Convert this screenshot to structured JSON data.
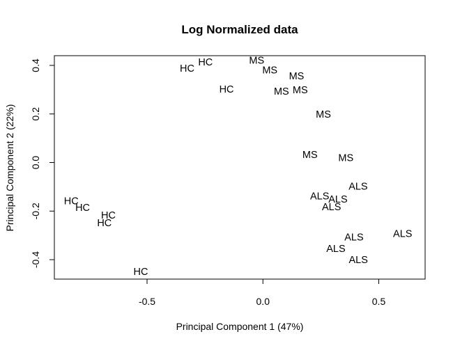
{
  "chart_data": {
    "type": "scatter",
    "title": "Log Normalized data",
    "xlabel": "Principal Component 1 (47%)",
    "ylabel": "Principal Component 2 (22%)",
    "xlim": [
      -0.9,
      0.7
    ],
    "ylim": [
      -0.48,
      0.44
    ],
    "xticks": [
      -0.5,
      0.0,
      0.5
    ],
    "xtick_labels": [
      "-0.5",
      "0.0",
      "0.5"
    ],
    "yticks": [
      -0.4,
      -0.2,
      0.0,
      0.2,
      0.4
    ],
    "ytick_labels": [
      "-0.4",
      "-0.2",
      "0.0",
      "0.2",
      "0.4"
    ],
    "grid": false,
    "points": [
      {
        "label": "HC",
        "x": -0.248,
        "y": 0.411
      },
      {
        "label": "HC",
        "x": -0.327,
        "y": 0.385
      },
      {
        "label": "HC",
        "x": -0.157,
        "y": 0.299
      },
      {
        "label": "HC",
        "x": -0.827,
        "y": -0.16
      },
      {
        "label": "HC",
        "x": -0.778,
        "y": -0.187
      },
      {
        "label": "HC",
        "x": -0.667,
        "y": -0.219
      },
      {
        "label": "HC",
        "x": -0.684,
        "y": -0.25
      },
      {
        "label": "HC",
        "x": -0.527,
        "y": -0.451
      },
      {
        "label": "MS",
        "x": -0.027,
        "y": 0.418
      },
      {
        "label": "MS",
        "x": 0.03,
        "y": 0.379
      },
      {
        "label": "MS",
        "x": 0.145,
        "y": 0.354
      },
      {
        "label": "MS",
        "x": 0.08,
        "y": 0.291
      },
      {
        "label": "MS",
        "x": 0.161,
        "y": 0.296
      },
      {
        "label": "MS",
        "x": 0.261,
        "y": 0.197
      },
      {
        "label": "MS",
        "x": 0.203,
        "y": 0.03
      },
      {
        "label": "MS",
        "x": 0.358,
        "y": 0.017
      },
      {
        "label": "ALS",
        "x": 0.411,
        "y": -0.1
      },
      {
        "label": "ALS",
        "x": 0.245,
        "y": -0.14
      },
      {
        "label": "ALS",
        "x": 0.324,
        "y": -0.153
      },
      {
        "label": "ALS",
        "x": 0.296,
        "y": -0.185
      },
      {
        "label": "ALS",
        "x": 0.603,
        "y": -0.295
      },
      {
        "label": "ALS",
        "x": 0.393,
        "y": -0.31
      },
      {
        "label": "ALS",
        "x": 0.315,
        "y": -0.357
      },
      {
        "label": "ALS",
        "x": 0.412,
        "y": -0.402
      }
    ]
  }
}
